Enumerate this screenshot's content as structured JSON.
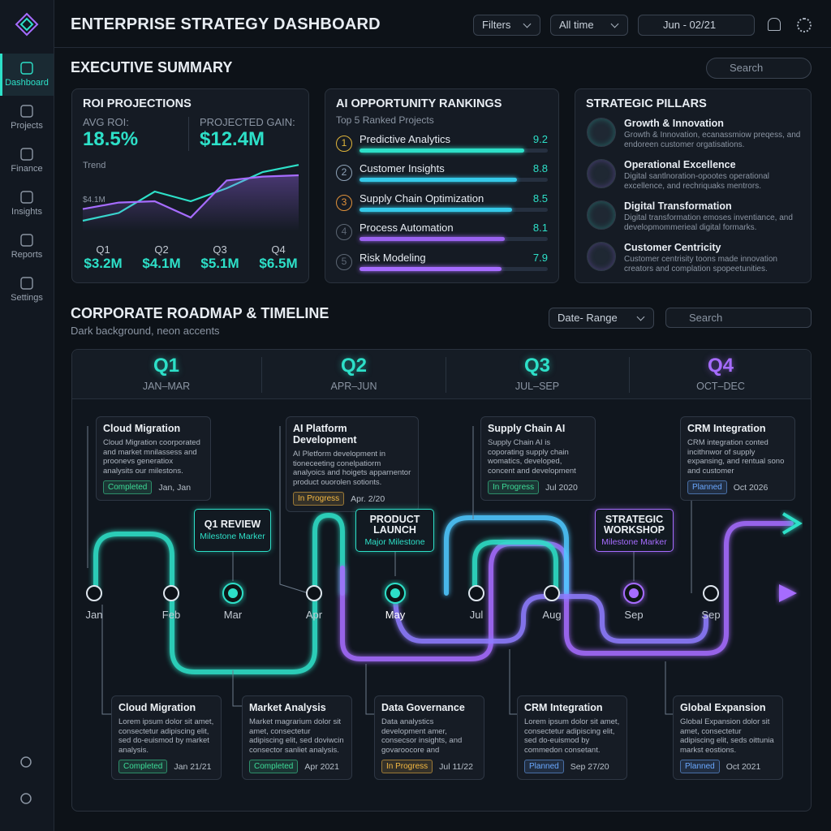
{
  "app": {
    "title": "ENTERPRISE STRATEGY DASHBOARD",
    "filters": "Filters",
    "time": "All time",
    "date": "Jun - 02/21"
  },
  "nav": [
    "Dashboard",
    "Projects",
    "Finance",
    "Insights",
    "Reports",
    "Settings"
  ],
  "summary": {
    "title": "EXECUTIVE SUMMARY",
    "search": "Search"
  },
  "roi": {
    "title": "ROI PROJECTIONS",
    "avg_label": "AVG ROI:",
    "avg": "18.5%",
    "gain_label": "PROJECTED GAIN:",
    "gain": "$12.4M",
    "trend_label": "Trend",
    "trend_axis": "$4.1M",
    "quarters": [
      "Q1",
      "Q2",
      "Q3",
      "Q4"
    ],
    "quarter_values": [
      "$3.2M",
      "$4.1M",
      "$5.1M",
      "$6.5M"
    ],
    "trend": {
      "ylim": [
        2,
        7
      ],
      "series": [
        {
          "color": "#2de0c8",
          "values": [
            2.5,
            3.1,
            4.75,
            4.0,
            5.0,
            6.25,
            6.8
          ]
        },
        {
          "color": "#a66cff",
          "values": [
            3.4,
            3.9,
            4.0,
            2.75,
            5.6,
            5.9,
            6.0
          ]
        }
      ]
    }
  },
  "rankings": {
    "title": "AI OPPORTUNITY RANKINGS",
    "subtitle": "Top 5 Ranked Projects",
    "xlim": [
      0,
      10.5
    ],
    "items": [
      {
        "rank": 1,
        "name": "Predictive Analytics",
        "score": 9.2,
        "color": "#2de0c8",
        "rank_color": "#e0b53a"
      },
      {
        "rank": 2,
        "name": "Customer Insights",
        "score": 8.8,
        "color": "#35c9e8",
        "rank_color": "#8fa3b8"
      },
      {
        "rank": 3,
        "name": "Supply Chain Optimization",
        "score": 8.5,
        "color": "#35c9e8",
        "rank_color": "#e0913a"
      },
      {
        "rank": 4,
        "name": "Process Automation",
        "score": 8.1,
        "color": "#9a62f0",
        "rank_color": "#5c6673"
      },
      {
        "rank": 5,
        "name": "Risk Modeling",
        "score": 7.9,
        "color": "#a66cff",
        "rank_color": "#5c6673"
      }
    ]
  },
  "pillars": {
    "title": "STRATEGIC PILLARS",
    "items": [
      {
        "title": "Growth & Innovation",
        "text": "Growth & Innovation, ecanassmiow preqess, and endoreen customer orgatisations."
      },
      {
        "title": "Operational Excellence",
        "text": "Digital santlnoration-opootes operational excellence, and rechriquaks mentrors."
      },
      {
        "title": "Digital Transformation",
        "text": "Digital transformation emoses inventiance, and developmommerieal digital formarks."
      },
      {
        "title": "Customer Centricity",
        "text": "Customer centrisity toons made innovation creators and complation spopeetunities."
      }
    ]
  },
  "roadmap": {
    "title": "CORPORATE ROADMAP & TIMELINE",
    "subtitle": "Dark background, neon accents",
    "range": "Date- Range",
    "search": "Search",
    "quarters": [
      {
        "name": "Q1",
        "months": "JAN–MAR",
        "color": "#2de0c8"
      },
      {
        "name": "Q2",
        "months": "APR–JUN",
        "color": "#2de0c8"
      },
      {
        "name": "Q3",
        "months": "JUL–SEP",
        "color": "#2de0c8"
      },
      {
        "name": "Q4",
        "months": "OCT–DEC",
        "color": "#a66cff"
      }
    ],
    "top_cards": [
      {
        "title": "Cloud Migration",
        "text": "Cloud Migration coorporated and market mnilassess and proonevs generatiox analysits our milestons.",
        "status": "Completed",
        "status_color": "#3ddc97",
        "date": "Jan, Jan"
      },
      {
        "title": "AI Platform Development",
        "text": "AI Pletform development in tioneceeting conelpatiorm analyoics and hoigets apparnentor product ouorolen sotionts.",
        "status": "In Progress",
        "status_color": "#f5b942",
        "date": "Apr. 2/20"
      },
      {
        "title": "Supply Chain AI",
        "text": "Supply Chain AI is coporating supply chain womatics, developed, concent and development aoi integration.",
        "status": "In Progress",
        "status_color": "#3ddc97",
        "date": "Jul 2020"
      },
      {
        "title": "CRM Integration",
        "text": "CRM integration conted incithnwor of supply expansing, and rentual sono and customer mayonizetiones.",
        "status": "Planned",
        "status_color": "#6aa8ff",
        "date": "Oct 2026"
      }
    ],
    "milestones": [
      {
        "title": "Q1 REVIEW",
        "subtitle": "Milestone Marker",
        "color": "#2de0c8"
      },
      {
        "title": "PRODUCT LAUNCH",
        "subtitle": "Major Milestone",
        "color": "#2de0c8"
      },
      {
        "title": "STRATEGIC WORKSHOP",
        "subtitle": "Milestone Marker",
        "color": "#a66cff"
      }
    ],
    "months": [
      "Jan",
      "Feb",
      "Mar",
      "Apr",
      "May",
      "Jul",
      "Aug",
      "Sep",
      "Sep"
    ],
    "bottom_cards": [
      {
        "title": "Cloud Migration",
        "text": "Lorem ipsum dolor sit amet, consectetur adipiscing elit, sed do-euismod by market analysis.",
        "status": "Completed",
        "status_color": "#3ddc97",
        "date": "Jan 21/21"
      },
      {
        "title": "Market Analysis",
        "text": "Market magrarium dolor sit amet, consectetur adipiscing elit, sed doviwcin consector sanliet analysis.",
        "status": "Completed",
        "status_color": "#3ddc97",
        "date": "Apr 2021"
      },
      {
        "title": "Data Governance",
        "text": "Data analystics development amer, consecsor insights, and govaroocore and comocoror eotoitation.",
        "status": "In Progress",
        "status_color": "#f5b942",
        "date": "Jul 11/22"
      },
      {
        "title": "CRM Integration",
        "text": "Lorem ipsum dolor sit amet, consectetur adipiscing elit, sed do-euismod by commedon consetant.",
        "status": "Planned",
        "status_color": "#6aa8ff",
        "date": "Sep 27/20"
      },
      {
        "title": "Global Expansion",
        "text": "Global Expansion dolor sit amet, consectetur adipiscing elit, seds oittunia markst eostions.",
        "status": "Planned",
        "status_color": "#6aa8ff",
        "date": "Oct 2021"
      }
    ]
  }
}
